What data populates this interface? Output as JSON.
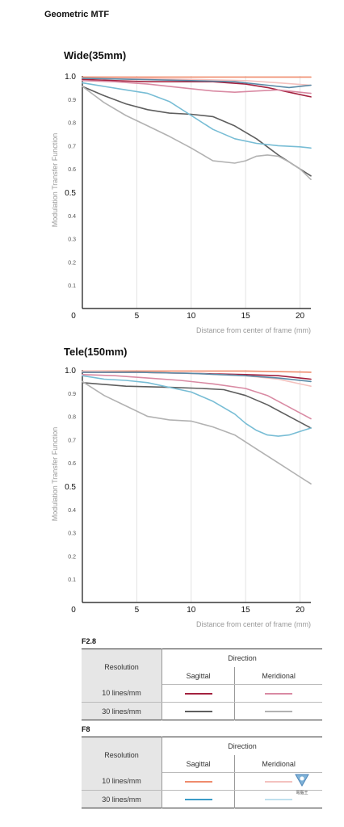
{
  "page_title": "Geometric MTF",
  "chart_data": [
    {
      "type": "line",
      "title": "Wide(35mm)",
      "xlabel": "Distance from center of frame (mm)",
      "ylabel": "Modulation Transfer Function",
      "xlim": [
        0,
        21
      ],
      "ylim": [
        0,
        1.0
      ],
      "xticks": [
        "0",
        "5",
        "10",
        "15",
        "20"
      ],
      "yticks": [
        "1.0",
        "0.9",
        "0.8",
        "0.7",
        "0.6",
        "0.5",
        "0.4",
        "0.3",
        "0.2",
        "0.1"
      ],
      "grid": "vertical",
      "series": [
        {
          "name": "F2.8 10 lines/mm Sagittal",
          "color": "#a3223f",
          "x": [
            0,
            3,
            6,
            9,
            12,
            15,
            17,
            19,
            21
          ],
          "y": [
            0.985,
            0.98,
            0.975,
            0.975,
            0.975,
            0.965,
            0.95,
            0.93,
            0.91
          ]
        },
        {
          "name": "F2.8 10 lines/mm Meridional",
          "color": "#d98aa3",
          "x": [
            0,
            3,
            6,
            9,
            12,
            14,
            16,
            18,
            21
          ],
          "y": [
            0.98,
            0.975,
            0.965,
            0.95,
            0.935,
            0.93,
            0.935,
            0.94,
            0.925
          ]
        },
        {
          "name": "F2.8 30 lines/mm Sagittal",
          "color": "#5e5e5e",
          "x": [
            0,
            2,
            4,
            6,
            8,
            10,
            12,
            14,
            16,
            18,
            20,
            21
          ],
          "y": [
            0.955,
            0.915,
            0.88,
            0.855,
            0.84,
            0.835,
            0.825,
            0.785,
            0.73,
            0.66,
            0.6,
            0.57
          ]
        },
        {
          "name": "F2.8 30 lines/mm Meridional",
          "color": "#b2b2b2",
          "x": [
            0,
            2,
            4,
            6,
            8,
            10,
            12,
            14,
            15,
            16,
            17,
            18,
            19,
            20,
            21
          ],
          "y": [
            0.955,
            0.885,
            0.83,
            0.785,
            0.74,
            0.69,
            0.635,
            0.625,
            0.635,
            0.655,
            0.66,
            0.655,
            0.63,
            0.6,
            0.555
          ]
        },
        {
          "name": "F8 10 lines/mm Sagittal",
          "color": "#ef8c6d",
          "x": [
            0,
            5,
            10,
            15,
            21
          ],
          "y": [
            0.995,
            0.995,
            0.995,
            0.995,
            0.995
          ]
        },
        {
          "name": "F8 10 lines/mm Meridional",
          "color": "#f4c2bf",
          "x": [
            0,
            5,
            10,
            15,
            18,
            21
          ],
          "y": [
            0.99,
            0.99,
            0.985,
            0.98,
            0.97,
            0.96
          ]
        },
        {
          "name": "F8 30 lines/mm Sagittal",
          "color": "#78bdd5",
          "x": [
            0,
            2,
            4,
            6,
            8,
            10,
            12,
            14,
            16,
            18,
            20,
            21
          ],
          "y": [
            0.97,
            0.955,
            0.94,
            0.925,
            0.89,
            0.83,
            0.77,
            0.73,
            0.71,
            0.7,
            0.695,
            0.69
          ]
        },
        {
          "name": "F8 30 lines/mm Meridional",
          "color": "#5a8aa6",
          "x": [
            0,
            5,
            10,
            14,
            17,
            19,
            21
          ],
          "y": [
            0.99,
            0.985,
            0.98,
            0.975,
            0.96,
            0.95,
            0.96
          ]
        }
      ]
    },
    {
      "type": "line",
      "title": "Tele(150mm)",
      "xlabel": "Distance from center of frame (mm)",
      "ylabel": "Modulation Transfer Function",
      "xlim": [
        0,
        21
      ],
      "ylim": [
        0,
        1.0
      ],
      "xticks": [
        "0",
        "5",
        "10",
        "15",
        "20"
      ],
      "yticks": [
        "1.0",
        "0.9",
        "0.8",
        "0.7",
        "0.6",
        "0.5",
        "0.4",
        "0.3",
        "0.2",
        "0.1"
      ],
      "grid": "vertical",
      "series": [
        {
          "name": "F2.8 10 lines/mm Sagittal",
          "color": "#a3223f",
          "x": [
            0,
            5,
            10,
            15,
            18,
            21
          ],
          "y": [
            0.99,
            0.99,
            0.985,
            0.98,
            0.975,
            0.96
          ]
        },
        {
          "name": "F2.8 10 lines/mm Meridional",
          "color": "#d98aa3",
          "x": [
            0,
            3,
            6,
            9,
            12,
            15,
            17,
            19,
            21
          ],
          "y": [
            0.98,
            0.975,
            0.965,
            0.955,
            0.94,
            0.92,
            0.89,
            0.84,
            0.79
          ]
        },
        {
          "name": "F2.8 30 lines/mm Sagittal",
          "color": "#5e5e5e",
          "x": [
            0,
            4,
            8,
            11,
            13,
            15,
            17,
            19,
            21
          ],
          "y": [
            0.945,
            0.93,
            0.925,
            0.92,
            0.915,
            0.89,
            0.85,
            0.8,
            0.75
          ]
        },
        {
          "name": "F2.8 30 lines/mm Meridional",
          "color": "#b2b2b2",
          "x": [
            0,
            2,
            4,
            6,
            8,
            10,
            12,
            14,
            16,
            18,
            20,
            21
          ],
          "y": [
            0.95,
            0.89,
            0.845,
            0.8,
            0.785,
            0.78,
            0.755,
            0.72,
            0.66,
            0.6,
            0.54,
            0.51
          ]
        },
        {
          "name": "F8 10 lines/mm Sagittal",
          "color": "#ef8c6d",
          "x": [
            0,
            5,
            10,
            15,
            21
          ],
          "y": [
            0.995,
            0.995,
            0.995,
            0.995,
            0.99
          ]
        },
        {
          "name": "F8 10 lines/mm Meridional",
          "color": "#f4c2bf",
          "x": [
            0,
            5,
            10,
            15,
            18,
            21
          ],
          "y": [
            0.995,
            0.99,
            0.985,
            0.975,
            0.96,
            0.93
          ]
        },
        {
          "name": "F8 30 lines/mm Sagittal",
          "color": "#78bdd5",
          "x": [
            0,
            2,
            4,
            6,
            8,
            10,
            12,
            14,
            15,
            16,
            17,
            18,
            19,
            20,
            21
          ],
          "y": [
            0.975,
            0.96,
            0.955,
            0.945,
            0.925,
            0.905,
            0.865,
            0.81,
            0.77,
            0.74,
            0.72,
            0.715,
            0.72,
            0.735,
            0.75
          ]
        },
        {
          "name": "F8 30 lines/mm Meridional",
          "color": "#5a8aa6",
          "x": [
            0,
            5,
            10,
            15,
            18,
            21
          ],
          "y": [
            0.99,
            0.99,
            0.985,
            0.975,
            0.965,
            0.95
          ]
        }
      ]
    }
  ],
  "legend": {
    "F2.8": {
      "label": "F2.8",
      "resolution": "Resolution",
      "direction": "Direction",
      "sagittal": "Sagittal",
      "meridional": "Meridional",
      "rows": [
        {
          "label": "10 lines/mm",
          "sagittal_color": "#a3223f",
          "meridional_color": "#d98aa3"
        },
        {
          "label": "30 lines/mm",
          "sagittal_color": "#5e5e5e",
          "meridional_color": "#b2b2b2"
        }
      ]
    },
    "F8": {
      "label": "F8",
      "resolution": "Resolution",
      "direction": "Direction",
      "sagittal": "Sagittal",
      "meridional": "Meridional",
      "rows": [
        {
          "label": "10 lines/mm",
          "sagittal_color": "#ef8c6d",
          "meridional_color": "#f4c2bf"
        },
        {
          "label": "30 lines/mm",
          "sagittal_color": "#3b9cc8",
          "meridional_color": "#bfe0ee"
        }
      ]
    }
  },
  "watermark": {
    "text": "電腦王"
  }
}
